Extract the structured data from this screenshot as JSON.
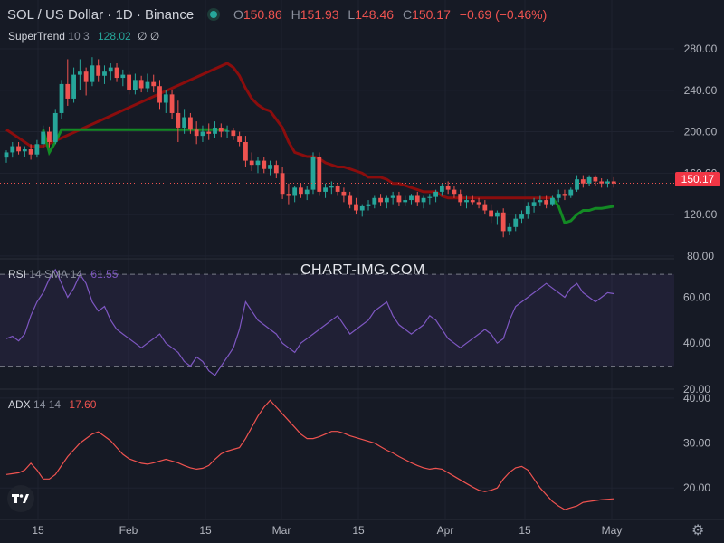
{
  "header": {
    "symbol": "SOL / US Dollar · 1D · Binance",
    "open_label": "O",
    "open": "150.86",
    "high_label": "H",
    "high": "151.93",
    "low_label": "L",
    "low": "148.46",
    "close_label": "C",
    "close": "150.17",
    "change": "−0.69 (−0.46%)"
  },
  "supertrend": {
    "name": "SuperTrend",
    "params": "10 3",
    "value": "128.02",
    "glyph": "∅ ∅"
  },
  "rsi": {
    "name": "RSI",
    "params": "14 SMA 14",
    "value": "61.55"
  },
  "adx": {
    "name": "ADX",
    "params": "14 14",
    "value": "17.60"
  },
  "watermark": "CHART-IMG.COM",
  "last_price_tag": "150.17",
  "colors": {
    "up": "#26a69a",
    "down": "#ef5350",
    "st_up": "#138a24",
    "st_down": "#8b0d0d",
    "rsi": "#7e57c2",
    "adx": "#ef5350",
    "bg": "#161a25"
  },
  "chart_data": [
    {
      "type": "candlestick",
      "title": "SOL / US Dollar · 1D · Binance",
      "price_axis_ticks": [
        "280.00",
        "240.00",
        "200.00",
        "160.00",
        "120.00",
        "80.00"
      ],
      "ylim": [
        72,
        294
      ],
      "x_axis_ticks": [
        "15",
        "Feb",
        "15",
        "Mar",
        "15",
        "Apr",
        "15",
        "May"
      ],
      "candles": [
        [
          0,
          175,
          182,
          170,
          180
        ],
        [
          1,
          180,
          190,
          175,
          186
        ],
        [
          2,
          186,
          190,
          178,
          181
        ],
        [
          3,
          181,
          186,
          176,
          183
        ],
        [
          4,
          183,
          188,
          173,
          178
        ],
        [
          5,
          178,
          192,
          175,
          188
        ],
        [
          6,
          188,
          206,
          184,
          200
        ],
        [
          7,
          200,
          205,
          185,
          190
        ],
        [
          8,
          190,
          222,
          188,
          218
        ],
        [
          9,
          218,
          250,
          212,
          246
        ],
        [
          10,
          246,
          270,
          225,
          232
        ],
        [
          11,
          232,
          262,
          228,
          255
        ],
        [
          12,
          255,
          270,
          240,
          258
        ],
        [
          13,
          258,
          262,
          235,
          248
        ],
        [
          14,
          248,
          272,
          244,
          264
        ],
        [
          15,
          264,
          270,
          248,
          254
        ],
        [
          16,
          254,
          264,
          246,
          258
        ],
        [
          17,
          258,
          266,
          250,
          262
        ],
        [
          18,
          262,
          266,
          248,
          252
        ],
        [
          19,
          252,
          260,
          244,
          255
        ],
        [
          20,
          255,
          258,
          236,
          240
        ],
        [
          21,
          240,
          256,
          236,
          250
        ],
        [
          22,
          250,
          254,
          238,
          242
        ],
        [
          23,
          242,
          256,
          238,
          248
        ],
        [
          24,
          248,
          255,
          238,
          244
        ],
        [
          25,
          244,
          250,
          222,
          228
        ],
        [
          26,
          228,
          240,
          218,
          236
        ],
        [
          27,
          236,
          240,
          212,
          218
        ],
        [
          28,
          218,
          230,
          190,
          204
        ],
        [
          29,
          204,
          222,
          198,
          214
        ],
        [
          30,
          214,
          218,
          198,
          202
        ],
        [
          31,
          202,
          210,
          188,
          196
        ],
        [
          32,
          196,
          206,
          190,
          200
        ],
        [
          33,
          200,
          208,
          192,
          198
        ],
        [
          34,
          198,
          210,
          194,
          204
        ],
        [
          35,
          204,
          208,
          195,
          200
        ],
        [
          36,
          200,
          206,
          194,
          201
        ],
        [
          37,
          201,
          204,
          192,
          196
        ],
        [
          38,
          196,
          200,
          186,
          190
        ],
        [
          39,
          190,
          196,
          166,
          172
        ],
        [
          40,
          172,
          180,
          162,
          168
        ],
        [
          41,
          168,
          176,
          160,
          172
        ],
        [
          42,
          172,
          176,
          160,
          164
        ],
        [
          43,
          164,
          172,
          158,
          168
        ],
        [
          44,
          168,
          172,
          155,
          160
        ],
        [
          45,
          160,
          166,
          135,
          140
        ],
        [
          46,
          140,
          150,
          130,
          138
        ],
        [
          47,
          138,
          148,
          132,
          146
        ],
        [
          48,
          146,
          150,
          136,
          140
        ],
        [
          49,
          140,
          148,
          134,
          144
        ],
        [
          50,
          144,
          180,
          140,
          176
        ],
        [
          51,
          176,
          180,
          138,
          142
        ],
        [
          52,
          142,
          150,
          136,
          146
        ],
        [
          53,
          146,
          152,
          140,
          148
        ],
        [
          54,
          148,
          150,
          138,
          142
        ],
        [
          55,
          142,
          146,
          132,
          138
        ],
        [
          56,
          138,
          142,
          126,
          130
        ],
        [
          57,
          130,
          136,
          120,
          124
        ],
        [
          58,
          124,
          130,
          118,
          128
        ],
        [
          59,
          128,
          134,
          124,
          130
        ],
        [
          60,
          130,
          138,
          126,
          136
        ],
        [
          61,
          136,
          140,
          128,
          132
        ],
        [
          62,
          132,
          138,
          126,
          136
        ],
        [
          63,
          136,
          142,
          130,
          138
        ],
        [
          64,
          138,
          142,
          128,
          132
        ],
        [
          65,
          132,
          138,
          128,
          134
        ],
        [
          66,
          134,
          140,
          130,
          138
        ],
        [
          67,
          138,
          142,
          128,
          132
        ],
        [
          68,
          132,
          138,
          126,
          136
        ],
        [
          69,
          136,
          140,
          130,
          137
        ],
        [
          70,
          137,
          144,
          132,
          142
        ],
        [
          71,
          142,
          150,
          138,
          148
        ],
        [
          72,
          148,
          152,
          140,
          144
        ],
        [
          73,
          144,
          148,
          136,
          140
        ],
        [
          74,
          140,
          144,
          128,
          132
        ],
        [
          75,
          132,
          138,
          126,
          134
        ],
        [
          76,
          134,
          138,
          130,
          132
        ],
        [
          77,
          132,
          136,
          126,
          130
        ],
        [
          78,
          130,
          134,
          120,
          124
        ],
        [
          79,
          124,
          130,
          112,
          118
        ],
        [
          80,
          118,
          124,
          110,
          122
        ],
        [
          81,
          122,
          126,
          98,
          104
        ],
        [
          82,
          104,
          112,
          100,
          108
        ],
        [
          83,
          108,
          120,
          104,
          116
        ],
        [
          84,
          116,
          124,
          112,
          120
        ],
        [
          85,
          120,
          132,
          116,
          128
        ],
        [
          86,
          128,
          136,
          122,
          132
        ],
        [
          87,
          132,
          138,
          128,
          134
        ],
        [
          88,
          134,
          138,
          126,
          130
        ],
        [
          89,
          130,
          138,
          128,
          136
        ],
        [
          90,
          136,
          144,
          132,
          140
        ],
        [
          91,
          140,
          144,
          134,
          138
        ],
        [
          92,
          138,
          146,
          136,
          144
        ],
        [
          93,
          144,
          158,
          142,
          154
        ],
        [
          94,
          154,
          158,
          146,
          150
        ],
        [
          95,
          150,
          158,
          148,
          156
        ],
        [
          96,
          156,
          158,
          148,
          152
        ],
        [
          97,
          152,
          155,
          146,
          150
        ],
        [
          98,
          150,
          154,
          146,
          152
        ],
        [
          99,
          152,
          156,
          146,
          150
        ]
      ],
      "supertrend": {
        "up": [
          [
            6,
            202
          ],
          [
            7,
            180
          ],
          [
            8,
            190
          ],
          [
            9,
            202
          ],
          [
            35,
            202
          ],
          [
            36,
            202
          ]
        ],
        "down": [
          [
            0,
            202
          ],
          [
            1,
            198
          ],
          [
            2,
            194
          ],
          [
            3,
            190
          ],
          [
            4,
            186
          ],
          [
            5,
            186
          ],
          [
            6,
            186
          ],
          [
            36,
            266
          ],
          [
            37,
            262
          ],
          [
            38,
            254
          ],
          [
            39,
            242
          ],
          [
            40,
            232
          ],
          [
            41,
            226
          ],
          [
            42,
            222
          ],
          [
            43,
            220
          ],
          [
            44,
            212
          ],
          [
            45,
            204
          ],
          [
            46,
            190
          ],
          [
            47,
            180
          ],
          [
            48,
            178
          ],
          [
            49,
            176
          ],
          [
            50,
            176
          ],
          [
            51,
            174
          ],
          [
            52,
            170
          ],
          [
            53,
            168
          ],
          [
            54,
            166
          ],
          [
            55,
            166
          ],
          [
            56,
            164
          ],
          [
            57,
            162
          ],
          [
            58,
            160
          ],
          [
            59,
            156
          ],
          [
            60,
            156
          ],
          [
            61,
            156
          ],
          [
            62,
            154
          ],
          [
            63,
            150
          ],
          [
            64,
            150
          ],
          [
            65,
            148
          ],
          [
            66,
            146
          ],
          [
            67,
            144
          ],
          [
            68,
            142
          ],
          [
            69,
            142
          ],
          [
            70,
            142
          ],
          [
            71,
            138
          ],
          [
            72,
            136
          ],
          [
            73,
            136
          ],
          [
            74,
            136
          ],
          [
            75,
            136
          ],
          [
            76,
            136
          ],
          [
            77,
            136
          ],
          [
            78,
            136
          ],
          [
            79,
            136
          ],
          [
            80,
            136
          ],
          [
            81,
            136
          ],
          [
            82,
            136
          ],
          [
            83,
            136
          ],
          [
            84,
            136
          ],
          [
            85,
            136
          ],
          [
            86,
            136
          ],
          [
            87,
            136
          ],
          [
            88,
            136
          ],
          [
            89,
            136
          ]
        ],
        "up2": [
          [
            89,
            136
          ],
          [
            90,
            128
          ],
          [
            91,
            112
          ],
          [
            92,
            114
          ],
          [
            93,
            120
          ],
          [
            94,
            124
          ],
          [
            95,
            124
          ],
          [
            96,
            126
          ],
          [
            97,
            126
          ],
          [
            98,
            127
          ],
          [
            99,
            128
          ]
        ]
      }
    },
    {
      "type": "line",
      "title": "RSI 14 SMA 14",
      "y_axis_ticks": [
        "60.00",
        "40.00",
        "20.00"
      ],
      "ylim": [
        20,
        72
      ],
      "bands": [
        30,
        70
      ],
      "series": [
        {
          "name": "RSI",
          "values": [
            42,
            43,
            41,
            44,
            52,
            58,
            62,
            68,
            72,
            66,
            60,
            64,
            70,
            66,
            58,
            54,
            56,
            50,
            46,
            44,
            42,
            40,
            38,
            40,
            42,
            44,
            40,
            38,
            36,
            32,
            30,
            34,
            32,
            28,
            26,
            30,
            34,
            38,
            46,
            58,
            54,
            50,
            48,
            46,
            44,
            40,
            38,
            36,
            40,
            42,
            44,
            46,
            48,
            50,
            52,
            48,
            44,
            46,
            48,
            50,
            54,
            56,
            58,
            52,
            48,
            46,
            44,
            46,
            48,
            52,
            50,
            46,
            42,
            40,
            38,
            40,
            42,
            44,
            46,
            44,
            40,
            42,
            50,
            56,
            58,
            60,
            62,
            64,
            66,
            64,
            62,
            60,
            64,
            66,
            62,
            60,
            58,
            60,
            62,
            61.55
          ]
        }
      ]
    },
    {
      "type": "line",
      "title": "ADX 14 14",
      "y_axis_ticks": [
        "40.00",
        "30.00",
        "20.00"
      ],
      "ylim": [
        13,
        42
      ],
      "series": [
        {
          "name": "ADX",
          "values": [
            23,
            23.2,
            23.4,
            24,
            25.5,
            24,
            22,
            22,
            23,
            25,
            27,
            28.5,
            30,
            31,
            32,
            32.5,
            31.5,
            30.5,
            29,
            27.5,
            26.5,
            26,
            25.5,
            25.3,
            25.6,
            26,
            26.4,
            26,
            25.6,
            25,
            24.5,
            24.2,
            24.4,
            25,
            26.4,
            27.6,
            28.2,
            28.6,
            29,
            31,
            33.5,
            36,
            38,
            39.5,
            38,
            36.5,
            35,
            33.5,
            32,
            31,
            31,
            31.4,
            32,
            32.6,
            32.6,
            32.2,
            31.6,
            31.2,
            30.8,
            30.4,
            30,
            29.2,
            28.4,
            27.8,
            27,
            26.3,
            25.6,
            25,
            24.5,
            24.2,
            24.4,
            24.2,
            23.4,
            22.6,
            21.8,
            21,
            20.2,
            19.5,
            19.2,
            19.5,
            20,
            22,
            23.5,
            24.5,
            24.8,
            24,
            22,
            20,
            18.5,
            17,
            16,
            15.2,
            15.6,
            16,
            16.8,
            17,
            17.2,
            17.4,
            17.5,
            17.6
          ]
        }
      ]
    }
  ]
}
